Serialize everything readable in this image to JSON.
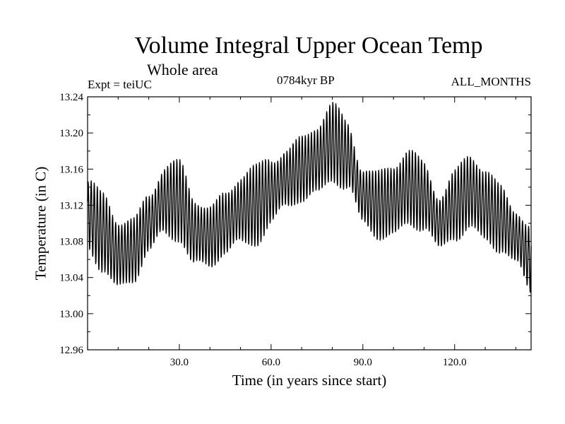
{
  "chart_data": {
    "type": "line",
    "title": "Volume Integral Upper Ocean Temp",
    "subtitle": "Whole area",
    "experiment_label": "Expt = teiUC",
    "period_label": "0784kyr BP",
    "months_label": "ALL_MONTHS",
    "xlabel": "Time (in years since start)",
    "ylabel": "Temperature (in C)",
    "xlim": [
      0,
      145
    ],
    "ylim": [
      12.96,
      13.24
    ],
    "x_ticks": [
      30,
      60,
      90,
      120
    ],
    "x_tick_labels": [
      "30.0",
      "60.0",
      "90.0",
      "120.0"
    ],
    "y_ticks": [
      12.96,
      13.0,
      13.04,
      13.08,
      13.12,
      13.16,
      13.2,
      13.24
    ],
    "y_tick_labels": [
      "12.96",
      "13.00",
      "13.04",
      "13.08",
      "13.12",
      "13.16",
      "13.20",
      "13.24"
    ],
    "grid": false,
    "seasonal_cycle": {
      "description": "monthly series oscillating about the annual mean",
      "annual_mean_years": [
        0,
        5,
        10,
        15,
        20,
        25,
        30,
        35,
        40,
        45,
        50,
        55,
        60,
        65,
        70,
        75,
        80,
        85,
        90,
        95,
        100,
        105,
        110,
        115,
        120,
        125,
        130,
        135,
        140,
        145
      ],
      "annual_mean": [
        13.11,
        13.09,
        13.065,
        13.07,
        13.1,
        13.125,
        13.125,
        13.09,
        13.085,
        13.1,
        13.115,
        13.12,
        13.135,
        13.15,
        13.16,
        13.17,
        13.19,
        13.175,
        13.13,
        13.12,
        13.125,
        13.14,
        13.13,
        13.1,
        13.12,
        13.135,
        13.12,
        13.105,
        13.085,
        13.06
      ],
      "amplitude": 0.042
    }
  }
}
